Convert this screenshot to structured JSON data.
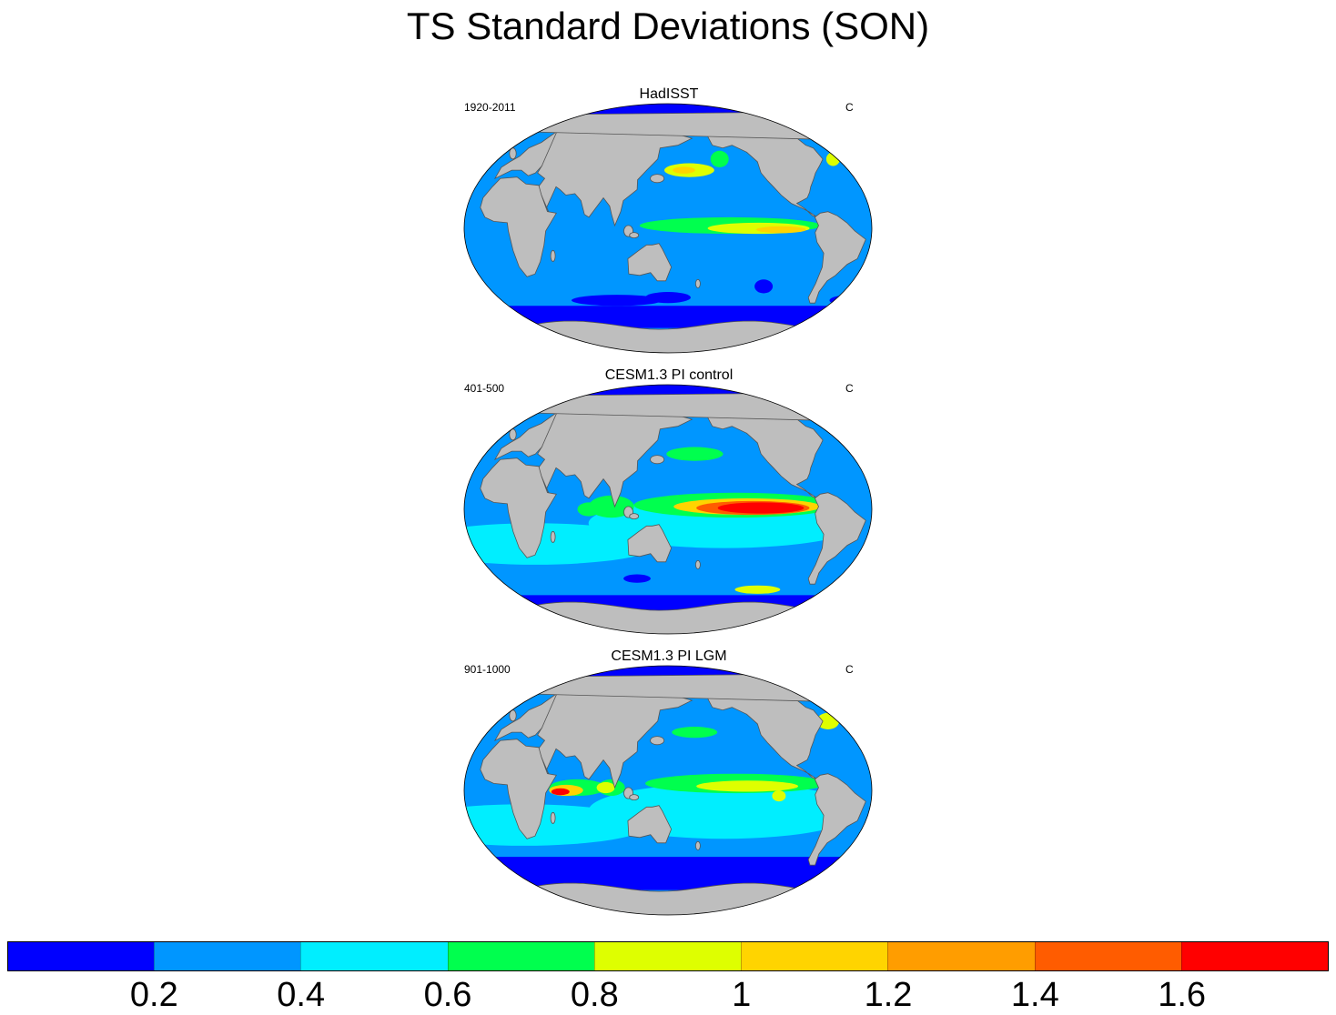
{
  "title": "TS Standard Deviations (SON)",
  "panels": [
    {
      "title": "HadISST",
      "left_label": "1920-2011",
      "right_label": "C",
      "variant": "obs"
    },
    {
      "title": "CESM1.3 PI control",
      "left_label": "401-500",
      "right_label": "C",
      "variant": "pic"
    },
    {
      "title": "CESM1.3 PI LGM",
      "left_label": "901-1000",
      "right_label": "C",
      "variant": "lgm"
    }
  ],
  "colorbar": {
    "colors": [
      "#0000ff",
      "#0096ff",
      "#00eeff",
      "#00ff4e",
      "#deff00",
      "#ffd400",
      "#ff9d00",
      "#ff5c00",
      "#ff0000"
    ],
    "tick_labels": [
      "0.2",
      "0.4",
      "0.6",
      "0.8",
      "1",
      "1.2",
      "1.4",
      "1.6"
    ],
    "tick_values": [
      0.2,
      0.4,
      0.6,
      0.8,
      1.0,
      1.2,
      1.4,
      1.6
    ],
    "min": 0.0,
    "max": 1.8
  },
  "land_color": "#bebebe"
}
